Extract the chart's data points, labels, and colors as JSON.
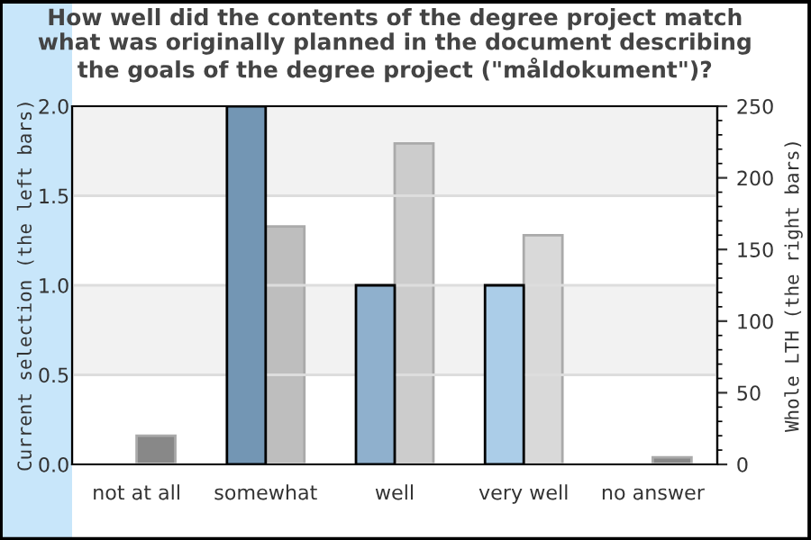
{
  "chart_data": {
    "type": "bar",
    "title": "How well did the contents of the degree project match\nwhat was originally planned in the document describing\nthe goals of the degree project (\"måldokument\")?",
    "categories": [
      "not at all",
      "somewhat",
      "well",
      "very well",
      "no answer"
    ],
    "ylabel": "Current selection (the left bars)",
    "y2label": "Whole LTH (the right bars)",
    "series": [
      {
        "colors": [
          "#7396b4",
          "#7396b4",
          "#8fb0cd",
          "#abcde8",
          "#abcde8"
        ],
        "values": [
          0,
          2,
          1,
          1,
          0
        ]
      },
      {
        "axis": "y2",
        "colors": [
          "#888888",
          "#bebebe",
          "#cccccc",
          "#d9d9d9",
          "#888888"
        ],
        "values": [
          20,
          166,
          224,
          160,
          5
        ]
      }
    ],
    "ylim": [
      0,
      2
    ],
    "yticks": [
      {
        "value": 0,
        "label": "0.0"
      },
      0.5,
      {
        "value": 1,
        "label": "1.0"
      },
      1.5,
      {
        "value": 2,
        "label": "2.0"
      }
    ],
    "y2lim": [
      0,
      250
    ],
    "y2ticks": [
      0,
      {
        "value": 10,
        "label": null
      },
      {
        "value": 20,
        "label": null
      },
      {
        "value": 30,
        "label": null
      },
      {
        "value": 40,
        "label": null
      },
      50,
      {
        "value": 60,
        "label": null
      },
      {
        "value": 70,
        "label": null
      },
      {
        "value": 80,
        "label": null
      },
      {
        "value": 90,
        "label": null
      },
      100,
      {
        "value": 110,
        "label": null
      },
      {
        "value": 120,
        "label": null
      },
      {
        "value": 130,
        "label": null
      },
      {
        "value": 140,
        "label": null
      },
      150,
      {
        "value": 160,
        "label": null
      },
      {
        "value": 170,
        "label": null
      },
      {
        "value": 180,
        "label": null
      },
      {
        "value": 190,
        "label": null
      },
      200,
      {
        "value": 210,
        "label": null
      },
      {
        "value": 220,
        "label": null
      },
      {
        "value": 230,
        "label": null
      },
      {
        "value": 240,
        "label": null
      },
      250
    ],
    "bands": [
      {
        "axis": "y",
        "from": 0.5,
        "to": 1,
        "color": "#f2f2f2"
      },
      {
        "axis": "y",
        "from": 1.5,
        "to": 2,
        "color": "#f2f2f2"
      }
    ],
    "grid": "y",
    "legend": false
  }
}
